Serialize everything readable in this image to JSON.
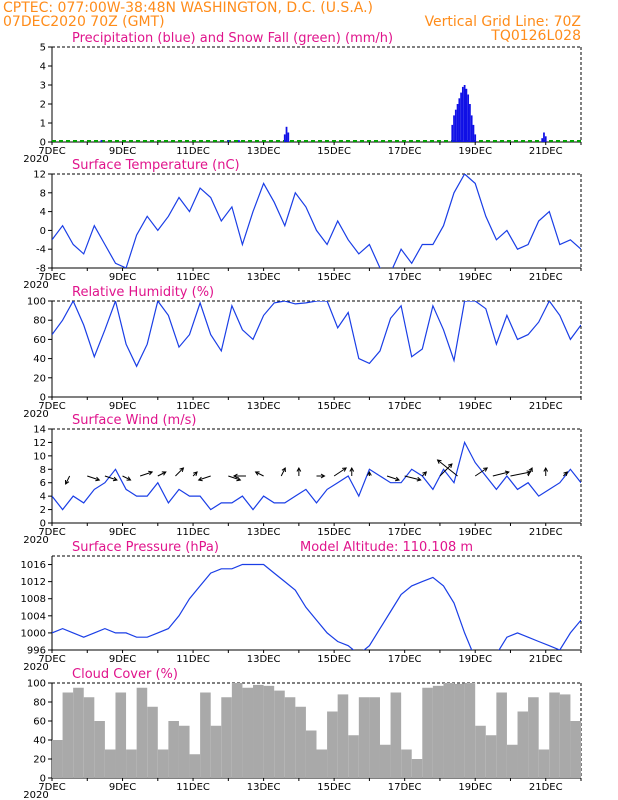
{
  "header": {
    "line1_left": "CPTEC:   077:00W-38:48N   WASHINGTON, D.C. (U.S.A.)",
    "line2_left": "07DEC2020  70Z  (GMT)",
    "line2_right": "Vertical Grid Line: 70Z",
    "line3_right": "TQ0126L028"
  },
  "x_axis": {
    "labels": [
      "7DEC",
      "9DEC",
      "11DEC",
      "13DEC",
      "15DEC",
      "17DEC",
      "19DEC",
      "21DEC"
    ],
    "year_label": "2020"
  },
  "colors": {
    "precip": "#1010e6",
    "snow": "#00a000",
    "line": "#1a3ee6",
    "cloud": "#a9a9a9",
    "arrow": "#000000"
  },
  "chart_data": [
    {
      "id": "precip",
      "type": "bar",
      "title": "Precipitation (blue) and Snow Fall (green) (mm/h)",
      "x_range_days": [
        7,
        22
      ],
      "ylim": [
        0,
        5
      ],
      "yticks": [
        0,
        1,
        2,
        3,
        4,
        5
      ],
      "series": [
        {
          "name": "Precipitation",
          "x": [
            8.4,
            12.0,
            12.3,
            13.6,
            13.65,
            13.7,
            18.35,
            18.4,
            18.45,
            18.5,
            18.55,
            18.6,
            18.65,
            18.7,
            18.75,
            18.8,
            18.85,
            18.9,
            18.95,
            19.0,
            20.9,
            20.95,
            21.0
          ],
          "values": [
            0.1,
            0.1,
            0.1,
            0.4,
            0.8,
            0.5,
            0.9,
            1.4,
            1.7,
            2.0,
            2.3,
            2.6,
            2.9,
            3.0,
            2.8,
            2.5,
            2.0,
            1.4,
            0.9,
            0.4,
            0.2,
            0.5,
            0.3
          ]
        }
      ]
    },
    {
      "id": "temp",
      "type": "line",
      "title": "Surface Temperature (nC)",
      "x_range_days": [
        7,
        22
      ],
      "ylim": [
        -8,
        12
      ],
      "yticks": [
        -8,
        -4,
        0,
        4,
        8,
        12
      ],
      "x": [
        7.0,
        7.3,
        7.6,
        7.9,
        8.2,
        8.5,
        8.8,
        9.1,
        9.4,
        9.7,
        10.0,
        10.3,
        10.6,
        10.9,
        11.2,
        11.5,
        11.8,
        12.1,
        12.4,
        12.7,
        13.0,
        13.3,
        13.6,
        13.9,
        14.2,
        14.5,
        14.8,
        15.1,
        15.4,
        15.7,
        16.0,
        16.3,
        16.6,
        16.9,
        17.2,
        17.5,
        17.8,
        18.1,
        18.4,
        18.7,
        19.0,
        19.3,
        19.6,
        19.9,
        20.2,
        20.5,
        20.8,
        21.1,
        21.4,
        21.7,
        22.0
      ],
      "values": [
        -2,
        1,
        -3,
        -5,
        1,
        -3,
        -7,
        -8,
        -1,
        3,
        0,
        3,
        7,
        4,
        9,
        7,
        2,
        5,
        -3,
        4,
        10,
        6,
        1,
        8,
        5,
        0,
        -3,
        2,
        -2,
        -5,
        -3,
        -8,
        -9,
        -4,
        -7,
        -3,
        -3,
        1,
        8,
        12,
        10,
        3,
        -2,
        0,
        -4,
        -3,
        2,
        4,
        -3,
        -2,
        -4
      ]
    },
    {
      "id": "rh",
      "type": "line",
      "title": "Relative Humidity (%)",
      "x_range_days": [
        7,
        22
      ],
      "ylim": [
        0,
        100
      ],
      "yticks": [
        0,
        20,
        40,
        60,
        80,
        100
      ],
      "x": [
        7.0,
        7.3,
        7.6,
        7.9,
        8.2,
        8.5,
        8.8,
        9.1,
        9.4,
        9.7,
        10.0,
        10.3,
        10.6,
        10.9,
        11.2,
        11.5,
        11.8,
        12.1,
        12.4,
        12.7,
        13.0,
        13.3,
        13.6,
        13.9,
        14.2,
        14.5,
        14.8,
        15.1,
        15.4,
        15.7,
        16.0,
        16.3,
        16.6,
        16.9,
        17.2,
        17.5,
        17.8,
        18.1,
        18.4,
        18.7,
        19.0,
        19.3,
        19.6,
        19.9,
        20.2,
        20.5,
        20.8,
        21.1,
        21.4,
        21.7,
        22.0
      ],
      "values": [
        65,
        80,
        100,
        75,
        42,
        70,
        100,
        55,
        32,
        55,
        100,
        85,
        52,
        65,
        98,
        65,
        48,
        95,
        70,
        60,
        85,
        98,
        100,
        97,
        98,
        100,
        100,
        72,
        88,
        40,
        35,
        48,
        82,
        95,
        42,
        50,
        95,
        70,
        38,
        100,
        100,
        92,
        55,
        85,
        60,
        65,
        78,
        100,
        85,
        60,
        75
      ]
    },
    {
      "id": "wind",
      "type": "line",
      "title": "Surface Wind (m/s)",
      "x_range_days": [
        7,
        22
      ],
      "ylim": [
        0,
        14
      ],
      "yticks": [
        0,
        2,
        4,
        6,
        8,
        10,
        12,
        14
      ],
      "x": [
        7.0,
        7.3,
        7.6,
        7.9,
        8.2,
        8.5,
        8.8,
        9.1,
        9.4,
        9.7,
        10.0,
        10.3,
        10.6,
        10.9,
        11.2,
        11.5,
        11.8,
        12.1,
        12.4,
        12.7,
        13.0,
        13.3,
        13.6,
        13.9,
        14.2,
        14.5,
        14.8,
        15.1,
        15.4,
        15.7,
        16.0,
        16.3,
        16.6,
        16.9,
        17.2,
        17.5,
        17.8,
        18.1,
        18.4,
        18.7,
        19.0,
        19.3,
        19.6,
        19.9,
        20.2,
        20.5,
        20.8,
        21.1,
        21.4,
        21.7,
        22.0
      ],
      "values": [
        4,
        2,
        4,
        3,
        5,
        6,
        8,
        5,
        4,
        4,
        6,
        3,
        5,
        4,
        4,
        2,
        3,
        3,
        4,
        2,
        4,
        3,
        3,
        4,
        5,
        3,
        5,
        6,
        7,
        4,
        8,
        7,
        6,
        6,
        8,
        7,
        5,
        8,
        6,
        12,
        9,
        7,
        5,
        7,
        5,
        6,
        4,
        5,
        6,
        8,
        6
      ],
      "vectors_days": [
        7.5,
        8.0,
        8.5,
        9.0,
        9.5,
        10.0,
        10.5,
        11.0,
        11.5,
        12.0,
        12.5,
        13.0,
        13.5,
        14.0,
        14.5,
        15.0,
        15.5,
        16.0,
        16.5,
        17.0,
        17.5,
        18.0,
        18.5,
        19.0,
        19.5,
        20.0,
        20.5,
        21.0,
        21.5,
        22.0
      ],
      "vectors_u": [
        -1,
        3,
        3,
        2,
        3,
        2,
        2,
        1,
        -3,
        3,
        -3,
        -2,
        1,
        0,
        2,
        3,
        0,
        0,
        3,
        4,
        1,
        3,
        -5,
        3,
        4,
        5,
        1,
        0,
        1,
        3
      ],
      "vectors_v": [
        -2,
        -1,
        -1,
        -1,
        1,
        1,
        2,
        1,
        -1,
        -1,
        0,
        1,
        2,
        2,
        0,
        2,
        2,
        1,
        -1,
        -1,
        1,
        3,
        4,
        2,
        1,
        1,
        2,
        2,
        1,
        1
      ]
    },
    {
      "id": "pressure",
      "type": "line",
      "title": "Surface Pressure (hPa)",
      "subtitle": "Model Altitude: 110.108 m",
      "x_range_days": [
        7,
        22
      ],
      "ylim": [
        996,
        1018
      ],
      "yticks": [
        996,
        1000,
        1004,
        1008,
        1012,
        1016
      ],
      "x": [
        7.0,
        7.3,
        7.6,
        7.9,
        8.2,
        8.5,
        8.8,
        9.1,
        9.4,
        9.7,
        10.0,
        10.3,
        10.6,
        10.9,
        11.2,
        11.5,
        11.8,
        12.1,
        12.4,
        12.7,
        13.0,
        13.3,
        13.6,
        13.9,
        14.2,
        14.5,
        14.8,
        15.1,
        15.4,
        15.7,
        16.0,
        16.3,
        16.6,
        16.9,
        17.2,
        17.5,
        17.8,
        18.1,
        18.4,
        18.7,
        19.0,
        19.3,
        19.6,
        19.9,
        20.2,
        20.5,
        20.8,
        21.1,
        21.4,
        21.7,
        22.0
      ],
      "values": [
        1000,
        1001,
        1000,
        999,
        1000,
        1001,
        1000,
        1000,
        999,
        999,
        1000,
        1001,
        1004,
        1008,
        1011,
        1014,
        1015,
        1015,
        1016,
        1016,
        1016,
        1014,
        1012,
        1010,
        1006,
        1003,
        1000,
        998,
        997,
        995,
        997,
        1001,
        1005,
        1009,
        1011,
        1012,
        1013,
        1011,
        1007,
        1000,
        994,
        993,
        995,
        999,
        1000,
        999,
        998,
        997,
        996,
        1000,
        1003
      ]
    },
    {
      "id": "cloud",
      "type": "bar",
      "title": "Cloud Cover (%)",
      "x_range_days": [
        7,
        22
      ],
      "ylim": [
        0,
        100
      ],
      "yticks": [
        0,
        20,
        40,
        60,
        80,
        100
      ],
      "x": [
        7.0,
        7.3,
        7.6,
        7.9,
        8.2,
        8.5,
        8.8,
        9.1,
        9.4,
        9.7,
        10.0,
        10.3,
        10.6,
        10.9,
        11.2,
        11.5,
        11.8,
        12.1,
        12.4,
        12.7,
        13.0,
        13.3,
        13.6,
        13.9,
        14.2,
        14.5,
        14.8,
        15.1,
        15.4,
        15.7,
        16.0,
        16.3,
        16.6,
        16.9,
        17.2,
        17.5,
        17.8,
        18.1,
        18.4,
        18.7,
        19.0,
        19.3,
        19.6,
        19.9,
        20.2,
        20.5,
        20.8,
        21.1,
        21.4,
        21.7,
        22.0
      ],
      "values": [
        40,
        90,
        95,
        85,
        60,
        30,
        90,
        30,
        95,
        75,
        30,
        60,
        55,
        25,
        90,
        55,
        85,
        100,
        95,
        98,
        97,
        92,
        85,
        75,
        50,
        30,
        70,
        88,
        45,
        85,
        85,
        35,
        90,
        30,
        20,
        95,
        97,
        100,
        99,
        100,
        55,
        45,
        90,
        35,
        70,
        85,
        30,
        90,
        88,
        60,
        70
      ]
    }
  ]
}
